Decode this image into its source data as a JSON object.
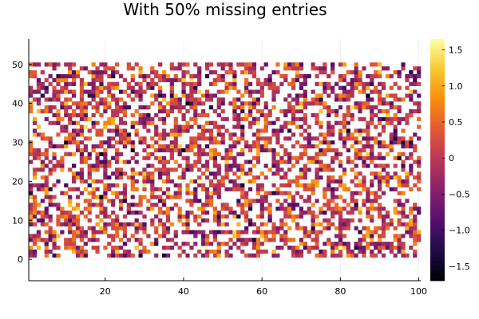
{
  "chart_data": {
    "type": "heatmap",
    "title": "With 50% missing entries",
    "xlabel": "",
    "ylabel": "",
    "n_cols": 100,
    "n_rows": 50,
    "missing_fraction": 0.5,
    "xlim": [
      0.5,
      100.5
    ],
    "ylim": [
      -5.5,
      56.5
    ],
    "x_ticks": [
      20,
      40,
      60,
      80,
      100
    ],
    "x_tick_labels": [
      "20",
      "40",
      "60",
      "80",
      "100"
    ],
    "y_ticks": [
      0,
      10,
      20,
      30,
      40,
      50
    ],
    "y_tick_labels": [
      "0",
      "10",
      "20",
      "30",
      "40",
      "50"
    ],
    "grid": true,
    "colorbar": {
      "colormap": "inferno",
      "clim": [
        -1.7,
        1.65
      ],
      "ticks": [
        -1.5,
        -1.0,
        -0.5,
        0,
        0.5,
        1.0,
        1.5
      ],
      "tick_labels": [
        "−1.5",
        "−1.0",
        "−0.5",
        "0",
        "0.5",
        "1.0",
        "1.5"
      ]
    },
    "colors": {
      "background": "#ffffff",
      "axis": "#000000",
      "grid": "#e6e6e6"
    }
  }
}
